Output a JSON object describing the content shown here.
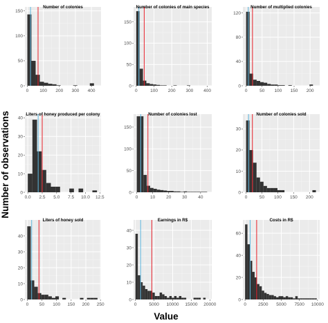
{
  "figure": {
    "ylabel": "Number of observations",
    "xlabel": "Value"
  },
  "colors": {
    "panel_bg": "#ebebeb",
    "grid_major": "#ffffff",
    "bar_fill": "#333333",
    "mean_line": "#e8202a",
    "median_line": "#5fb8e0"
  },
  "chart_data": [
    {
      "type": "bar",
      "title": "Number of colonies",
      "xlim": [
        -15,
        460
      ],
      "ylim": [
        0,
        158
      ],
      "xticks": [
        0,
        100,
        200,
        300,
        400
      ],
      "yticks": [
        0,
        50,
        100,
        150
      ],
      "bin_width": 26,
      "bin_start": 0,
      "values": [
        143,
        50,
        22,
        8,
        6,
        4,
        3,
        1,
        0,
        0,
        0,
        1,
        0,
        0,
        0,
        5
      ],
      "median": 20,
      "mean": 67
    },
    {
      "type": "bar",
      "title": "Number of colonies of main species",
      "xlim": [
        -15,
        425
      ],
      "ylim": [
        0,
        185
      ],
      "xticks": [
        0,
        100,
        200,
        300,
        400
      ],
      "yticks": [
        0,
        50,
        100,
        150
      ],
      "bin_width": 19,
      "bin_start": 0,
      "values": [
        175,
        40,
        12,
        6,
        4,
        3,
        2,
        1,
        1,
        0,
        0,
        1,
        0,
        0,
        0,
        1
      ],
      "median": 15,
      "mean": 45
    },
    {
      "type": "bar",
      "title": "Number of multiplied colonies",
      "xlim": [
        -10,
        230
      ],
      "ylim": [
        0,
        130
      ],
      "xticks": [
        0,
        50,
        100,
        150,
        200
      ],
      "yticks": [
        0,
        40,
        80,
        120
      ],
      "bin_width": 11,
      "bin_start": 0,
      "values": [
        122,
        20,
        10,
        8,
        6,
        5,
        3,
        2,
        2,
        1,
        1,
        0,
        1,
        0,
        0,
        0,
        0,
        0,
        2
      ],
      "median": 7,
      "mean": 20
    },
    {
      "type": "bar",
      "title": "Liters of honey produced per colony",
      "xlim": [
        -0.5,
        12.7
      ],
      "ylim": [
        0,
        42
      ],
      "xticks": [
        0,
        2.5,
        5,
        7.5,
        10,
        12.5
      ],
      "yticks": [
        0,
        10,
        20,
        30,
        40
      ],
      "xtick_labels": [
        "0.0",
        "2.5",
        "5.0",
        "7.5",
        "10.0",
        "12.5"
      ],
      "bin_width": 0.8,
      "bin_start": 0,
      "values": [
        10,
        39,
        22,
        12,
        5,
        3,
        3,
        0,
        0,
        2,
        0,
        2,
        0,
        0,
        1
      ],
      "median": 1.8,
      "mean": 2.5
    },
    {
      "type": "bar",
      "title": "Number of colonies lost",
      "xlim": [
        -2,
        47
      ],
      "ylim": [
        0,
        180
      ],
      "xticks": [
        0,
        10,
        20,
        30,
        40
      ],
      "yticks": [
        0,
        50,
        100,
        150
      ],
      "bin_width": 2.1,
      "bin_start": 0,
      "values": [
        175,
        175,
        40,
        15,
        10,
        8,
        6,
        5,
        4,
        3,
        3,
        2,
        2,
        1,
        2,
        1,
        1,
        1,
        1,
        1,
        1
      ],
      "median": 2.5,
      "mean": 7
    },
    {
      "type": "bar",
      "title": "Number of colonies sold",
      "xlim": [
        -10,
        232
      ],
      "ylim": [
        0,
        37
      ],
      "xticks": [
        0,
        50,
        100,
        150,
        200
      ],
      "yticks": [
        0,
        10,
        20,
        30
      ],
      "bin_width": 11,
      "bin_start": 0,
      "values": [
        34,
        20,
        14,
        7,
        5,
        3,
        2,
        2,
        2,
        1,
        1,
        0,
        0,
        0,
        0,
        0,
        0,
        0,
        0,
        1
      ],
      "median": 8,
      "mean": 20
    },
    {
      "type": "bar",
      "title": "Liters of honey sold",
      "xlim": [
        -8,
        252
      ],
      "ylim": [
        0,
        50
      ],
      "xticks": [
        0,
        50,
        100,
        150,
        200,
        250
      ],
      "yticks": [
        0,
        10,
        20,
        30,
        40
      ],
      "bin_width": 12,
      "bin_start": 0,
      "values": [
        46,
        12,
        8,
        4,
        3,
        3,
        2,
        1,
        2,
        0,
        1,
        0,
        0,
        0,
        0,
        1,
        0,
        1,
        1,
        1
      ],
      "median": 15,
      "mean": 40
    },
    {
      "type": "bar",
      "title": "Earnings in R$",
      "xlim": [
        -500,
        20500
      ],
      "ylim": [
        0,
        46
      ],
      "xticks": [
        0,
        5000,
        10000,
        15000,
        20000
      ],
      "yticks": [
        0,
        10,
        20,
        30,
        40
      ],
      "bin_width": 650,
      "bin_start": 0,
      "values": [
        38,
        14,
        10,
        8,
        6,
        5,
        5,
        4,
        2,
        2,
        4,
        3,
        2,
        1,
        2,
        1,
        2,
        1,
        2,
        1,
        1,
        0,
        0,
        0,
        1,
        1,
        1,
        0,
        1
      ],
      "median": 1400,
      "mean": 4400
    },
    {
      "type": "bar",
      "title": "Costs in R$",
      "xlim": [
        -300,
        10300
      ],
      "ylim": [
        0,
        72
      ],
      "xticks": [
        0,
        2500,
        5000,
        7500,
        10000
      ],
      "yticks": [
        0,
        20,
        40,
        60
      ],
      "bin_width": 330,
      "bin_start": 0,
      "values": [
        68,
        50,
        35,
        25,
        20,
        14,
        12,
        8,
        6,
        5,
        4,
        4,
        3,
        2,
        3,
        3,
        2,
        3,
        2,
        2,
        1,
        3,
        1,
        1,
        1,
        1,
        1,
        1,
        1,
        1
      ],
      "median": 700,
      "mean": 1600
    }
  ]
}
